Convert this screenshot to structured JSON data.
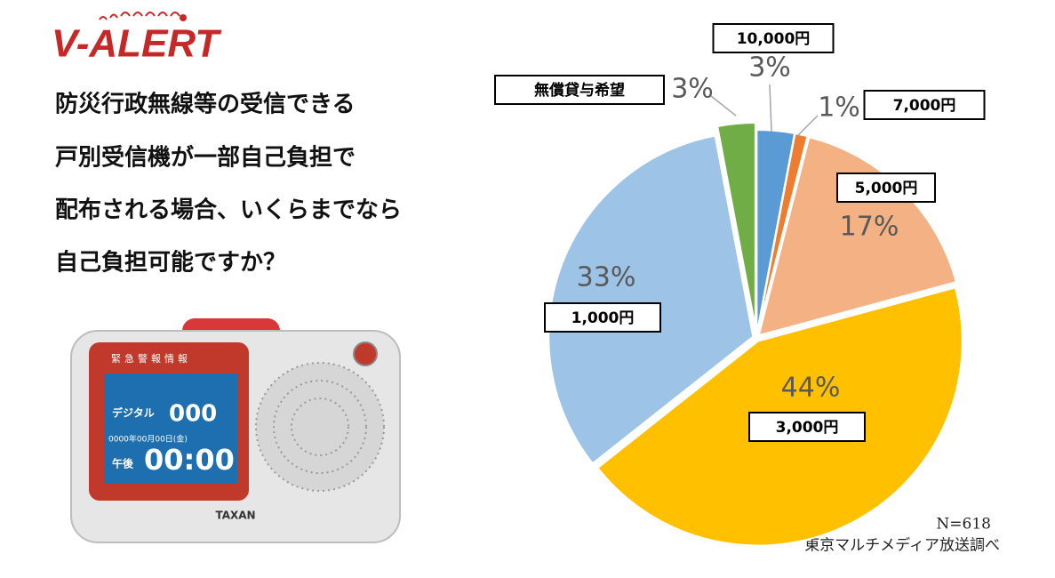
{
  "logo": "V-ALERT",
  "question": [
    "防災行政無線等の受信できる",
    "戸別受信機が一部自己負担で",
    "配布される場合、いくらまでなら",
    "自己負担可能ですか？"
  ],
  "device": {
    "header": "緊急警報情報",
    "mode": "デジタル",
    "channel": "000",
    "date": "0000年00月00日(金)",
    "period": "午後",
    "time": "00:00",
    "brand": "TAXAN"
  },
  "chart_data": {
    "type": "pie",
    "categories": [
      "10,000円",
      "7,000円",
      "5,000円",
      "3,000円",
      "1,000円",
      "無償貸与希望"
    ],
    "values": [
      3,
      1,
      17,
      44,
      33,
      3
    ],
    "value_labels": [
      "3%",
      "1%",
      "17%",
      "44%",
      "33%",
      "3%"
    ],
    "colors": [
      "#5b9bd5",
      "#ed7d31",
      "#f4b183",
      "#ffc000",
      "#9dc3e6",
      "#70ad47"
    ],
    "note": "N=618",
    "source": "東京マルチメディア放送調べ"
  }
}
